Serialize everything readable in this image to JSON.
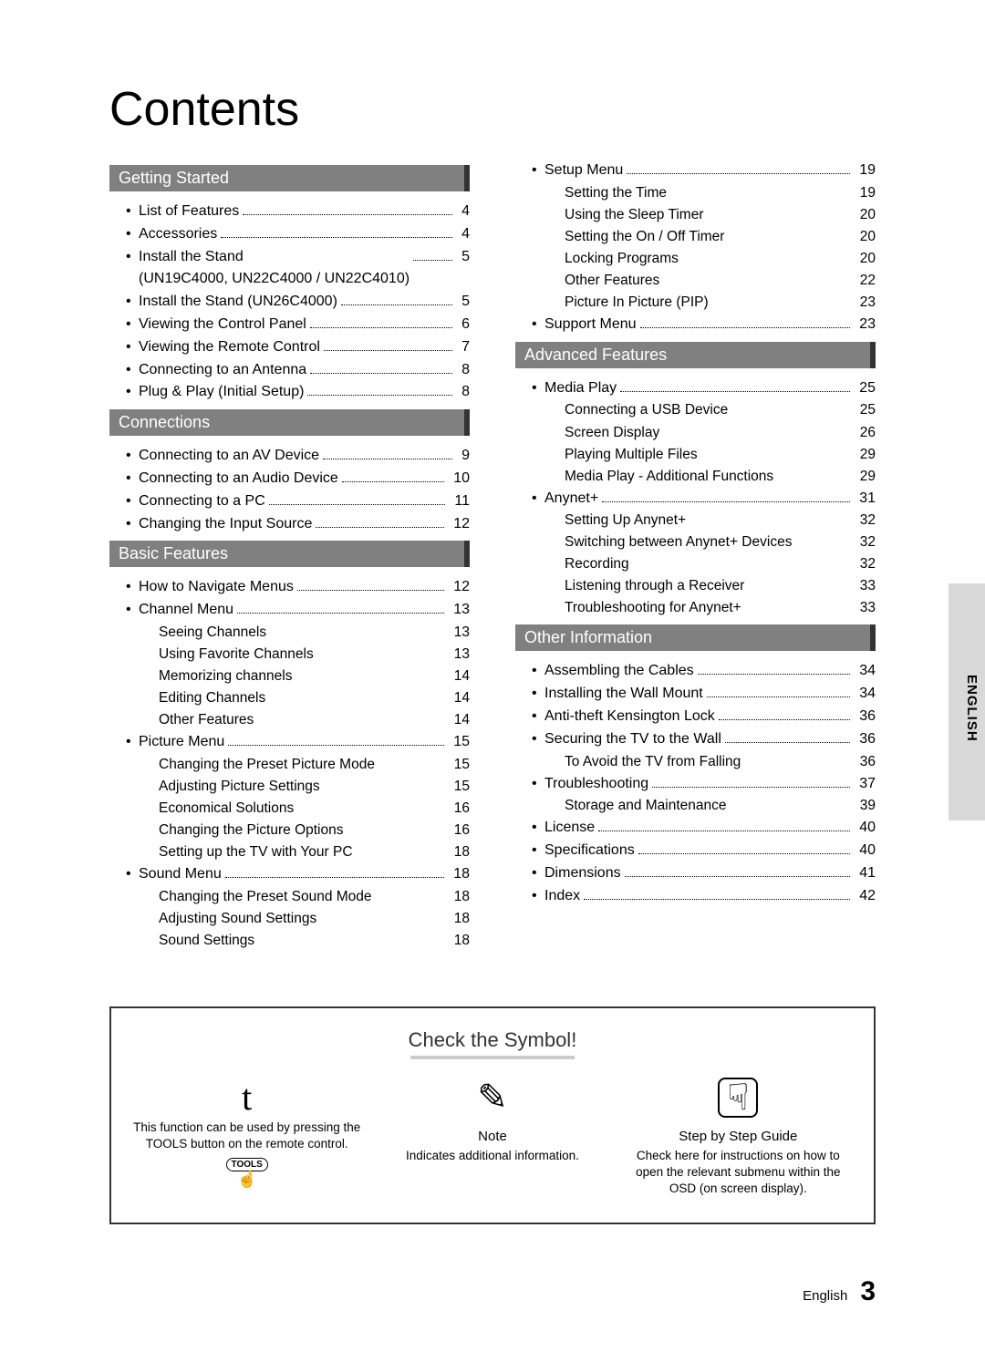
{
  "title": "Contents",
  "tab": "ENGLISH",
  "footer": {
    "lang": "English",
    "page": "3"
  },
  "left": [
    {
      "head": "Getting Started",
      "items": [
        {
          "label": "List of Features",
          "page": "4"
        },
        {
          "label": "Accessories",
          "page": "4"
        },
        {
          "label": "Install the Stand\n(UN19C4000, UN22C4000 / UN22C4010)",
          "page": "5"
        },
        {
          "label": "Install the Stand (UN26C4000)",
          "page": "5"
        },
        {
          "label": "Viewing the Control Panel",
          "page": "6"
        },
        {
          "label": "Viewing the Remote Control",
          "page": "7"
        },
        {
          "label": "Connecting to an Antenna",
          "page": "8"
        },
        {
          "label": "Plug & Play (Initial Setup)",
          "page": "8"
        }
      ]
    },
    {
      "head": "Connections",
      "items": [
        {
          "label": "Connecting to an AV Device",
          "page": "9"
        },
        {
          "label": "Connecting to an Audio Device",
          "page": "10"
        },
        {
          "label": "Connecting to a PC",
          "page": "11"
        },
        {
          "label": "Changing the Input Source",
          "page": "12"
        }
      ]
    },
    {
      "head": "Basic Features",
      "items": [
        {
          "label": "How to Navigate Menus",
          "page": "12"
        },
        {
          "label": "Channel Menu",
          "page": "13",
          "sub": [
            {
              "label": "Seeing Channels",
              "page": "13"
            },
            {
              "label": "Using Favorite Channels",
              "page": "13"
            },
            {
              "label": "Memorizing channels",
              "page": "14"
            },
            {
              "label": "Editing Channels",
              "page": "14"
            },
            {
              "label": "Other Features",
              "page": "14"
            }
          ]
        },
        {
          "label": "Picture Menu",
          "page": "15",
          "sub": [
            {
              "label": "Changing the Preset Picture Mode",
              "page": "15"
            },
            {
              "label": "Adjusting Picture Settings",
              "page": "15"
            },
            {
              "label": "Economical Solutions",
              "page": "16"
            },
            {
              "label": "Changing the Picture Options",
              "page": "16"
            },
            {
              "label": "Setting up the TV with Your PC",
              "page": "18"
            }
          ]
        },
        {
          "label": "Sound Menu",
          "page": "18",
          "sub": [
            {
              "label": "Changing the Preset Sound Mode",
              "page": "18"
            },
            {
              "label": "Adjusting Sound Settings",
              "page": "18"
            },
            {
              "label": "Sound Settings",
              "page": "18"
            }
          ]
        }
      ]
    }
  ],
  "right": [
    {
      "head": null,
      "items": [
        {
          "label": "Setup Menu",
          "page": "19",
          "sub": [
            {
              "label": "Setting the Time",
              "page": "19"
            },
            {
              "label": "Using the Sleep Timer",
              "page": "20"
            },
            {
              "label": "Setting the On / Off Timer",
              "page": "20"
            },
            {
              "label": "Locking Programs",
              "page": "20"
            },
            {
              "label": "Other Features",
              "page": "22"
            },
            {
              "label": "Picture In Picture (PIP)",
              "page": "23"
            }
          ]
        },
        {
          "label": "Support Menu",
          "page": "23"
        }
      ]
    },
    {
      "head": "Advanced Features",
      "items": [
        {
          "label": "Media Play",
          "page": "25",
          "sub": [
            {
              "label": "Connecting a USB Device",
              "page": "25"
            },
            {
              "label": "Screen Display",
              "page": "26"
            },
            {
              "label": "Playing Multiple Files",
              "page": "29"
            },
            {
              "label": "Media Play - Additional Functions",
              "page": "29"
            }
          ]
        },
        {
          "label": "Anynet+",
          "page": "31",
          "sub": [
            {
              "label": "Setting Up Anynet+",
              "page": "32"
            },
            {
              "label": "Switching between Anynet+ Devices",
              "page": "32"
            },
            {
              "label": "Recording",
              "page": "32"
            },
            {
              "label": "Listening through a Receiver",
              "page": "33"
            },
            {
              "label": "Troubleshooting for Anynet+",
              "page": "33"
            }
          ]
        }
      ]
    },
    {
      "head": "Other Information",
      "items": [
        {
          "label": "Assembling the Cables",
          "page": "34"
        },
        {
          "label": "Installing the Wall Mount",
          "page": "34"
        },
        {
          "label": "Anti-theft Kensington Lock",
          "page": "36"
        },
        {
          "label": "Securing the TV to the Wall",
          "page": "36",
          "sub": [
            {
              "label": "To Avoid the TV from Falling",
              "page": "36"
            }
          ]
        },
        {
          "label": "Troubleshooting",
          "page": "37",
          "sub": [
            {
              "label": "Storage and Maintenance",
              "page": "39"
            }
          ]
        },
        {
          "label": "License",
          "page": "40"
        },
        {
          "label": "Specifications",
          "page": "40"
        },
        {
          "label": "Dimensions",
          "page": "41"
        },
        {
          "label": "Index",
          "page": "42"
        }
      ]
    }
  ],
  "symbol": {
    "title": "Check the Symbol!",
    "cols": [
      {
        "icon": "t",
        "head": "",
        "body": "This function can be used by pressing the TOOLS button on the remote control.",
        "tools": "TOOLS"
      },
      {
        "icon": "✎",
        "head": "Note",
        "body": "Indicates additional information."
      },
      {
        "icon": "☟",
        "head": "Step by Step Guide",
        "body": "Check here for instructions on how to open the relevant submenu within the OSD (on screen display)."
      }
    ]
  }
}
